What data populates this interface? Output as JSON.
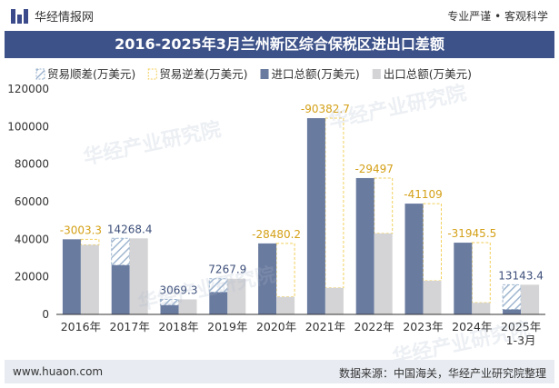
{
  "header": {
    "brand": "华经情报网",
    "tagline": "专业严谨 • 客观科学"
  },
  "title": "2016-2025年3月兰州新区综合保税区进出口差额",
  "footer": {
    "website": "www.huaon.com",
    "source": "数据来源：中国海关，华经产业研究院整理"
  },
  "watermark": "华经产业研究院",
  "colors": {
    "import": "#6a7ba0",
    "export": "#d4d4d6",
    "surplus": "#9fb6d0",
    "deficit": "#f2cf5a",
    "title_bg": "#3d5289"
  },
  "chart_data": {
    "type": "bar",
    "categories": [
      "2016年",
      "2017年",
      "2018年",
      "2019年",
      "2020年",
      "2021年",
      "2022年",
      "2023年",
      "2024年",
      "2025年\n1-3月"
    ],
    "series": [
      {
        "name": "进口总额(万美元)",
        "values": [
          40000,
          26200,
          4900,
          11800,
          37800,
          104500,
          72600,
          59000,
          38200,
          2600
        ]
      },
      {
        "name": "出口总额(万美元)",
        "values": [
          37000,
          40500,
          8000,
          19000,
          9300,
          14100,
          43100,
          17900,
          6200,
          15800
        ]
      }
    ],
    "balance": {
      "surplus_name": "贸易顺差(万美元)",
      "deficit_name": "贸易逆差(万美元)",
      "labels": [
        "-3003.3",
        "14268.4",
        "3069.3",
        "7267.9",
        "-28480.2",
        "-90382.7",
        "-29497",
        "-41109",
        "-31945.5",
        "13143.4"
      ]
    },
    "yticks": [
      "0",
      "20000",
      "40000",
      "60000",
      "80000",
      "100000",
      "120000"
    ],
    "ylim": [
      0,
      120000
    ],
    "legend": "top"
  }
}
